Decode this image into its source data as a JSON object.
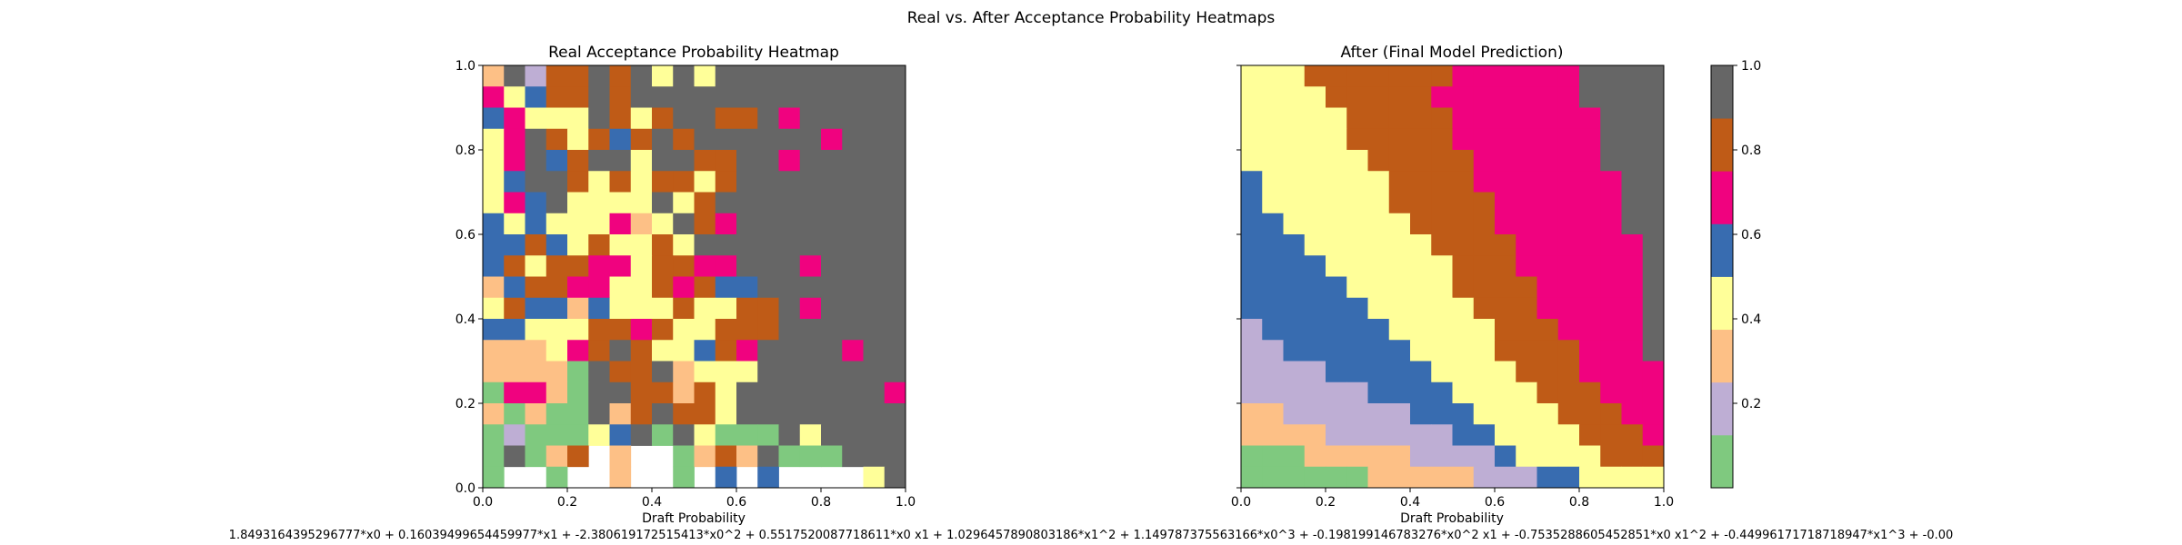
{
  "figure": {
    "suptitle": "Real vs. After Acceptance Probability Heatmaps",
    "formula": "1.8493164395296777*x0 + 0.16039499654459977*x1 + -2.380619172515413*x0^2 + 0.5517520087718611*x0 x1 + 1.0296457890803186*x1^2 + 1.149787375563166*x0^3 + -0.198199146783276*x0^2 x1 + -0.7535288605452851*x0 x1^2 + -0.44996171718718947*x1^3 + -0.00"
  },
  "chart_data": [
    {
      "type": "heatmap",
      "title": "Real Acceptance Probability Heatmap",
      "xlabel": "Draft Probability",
      "ylabel": "",
      "xlim": [
        0,
        1
      ],
      "ylim": [
        0,
        1
      ],
      "xticks": [
        "0.0",
        "0.2",
        "0.4",
        "0.6",
        "0.8",
        "1.0"
      ],
      "yticks": [
        "0.0",
        "0.2",
        "0.4",
        "0.6",
        "0.8",
        "1.0"
      ],
      "grid_size": 20,
      "value_scale": "0–7 bins, bin k covers [k/8, (k+1)/8); -1 = no data (white)",
      "rows_top_to_bottom": [
        [
          2,
          7,
          1,
          6,
          6,
          7,
          6,
          7,
          3,
          7,
          3,
          7,
          7,
          7,
          7,
          7,
          7,
          7,
          7,
          7
        ],
        [
          5,
          3,
          4,
          6,
          6,
          7,
          6,
          7,
          7,
          7,
          7,
          7,
          7,
          7,
          7,
          7,
          7,
          7,
          7,
          7
        ],
        [
          4,
          5,
          3,
          3,
          3,
          7,
          6,
          3,
          6,
          7,
          7,
          6,
          6,
          7,
          5,
          7,
          7,
          7,
          7,
          7
        ],
        [
          3,
          5,
          7,
          6,
          3,
          6,
          4,
          6,
          7,
          6,
          7,
          7,
          7,
          7,
          7,
          7,
          5,
          7,
          7,
          7
        ],
        [
          3,
          5,
          7,
          4,
          6,
          7,
          7,
          3,
          7,
          7,
          6,
          6,
          7,
          7,
          5,
          7,
          7,
          7,
          7,
          7
        ],
        [
          3,
          4,
          7,
          7,
          6,
          3,
          6,
          3,
          6,
          6,
          3,
          6,
          7,
          7,
          7,
          7,
          7,
          7,
          7,
          7
        ],
        [
          3,
          5,
          4,
          7,
          3,
          3,
          3,
          3,
          7,
          3,
          6,
          7,
          7,
          7,
          7,
          7,
          7,
          7,
          7,
          7
        ],
        [
          4,
          3,
          4,
          3,
          3,
          3,
          5,
          2,
          3,
          7,
          6,
          5,
          7,
          7,
          7,
          7,
          7,
          7,
          7,
          7
        ],
        [
          4,
          4,
          6,
          4,
          3,
          6,
          3,
          3,
          6,
          3,
          7,
          7,
          7,
          7,
          7,
          7,
          7,
          7,
          7,
          7
        ],
        [
          4,
          6,
          3,
          6,
          6,
          5,
          5,
          3,
          6,
          6,
          5,
          5,
          7,
          7,
          7,
          5,
          7,
          7,
          7,
          7
        ],
        [
          2,
          4,
          6,
          6,
          5,
          5,
          3,
          3,
          6,
          5,
          6,
          4,
          4,
          7,
          7,
          7,
          7,
          7,
          7,
          7
        ],
        [
          3,
          6,
          4,
          4,
          2,
          4,
          3,
          3,
          3,
          6,
          3,
          3,
          6,
          6,
          7,
          5,
          7,
          7,
          7,
          7
        ],
        [
          4,
          4,
          3,
          3,
          3,
          6,
          6,
          5,
          6,
          3,
          3,
          6,
          6,
          6,
          7,
          7,
          7,
          7,
          7,
          7
        ],
        [
          2,
          2,
          2,
          3,
          5,
          6,
          7,
          6,
          3,
          3,
          4,
          6,
          5,
          7,
          7,
          7,
          7,
          5,
          7,
          7
        ],
        [
          2,
          2,
          2,
          2,
          0,
          7,
          6,
          6,
          7,
          2,
          3,
          3,
          3,
          7,
          7,
          7,
          7,
          7,
          7,
          7
        ],
        [
          0,
          5,
          5,
          2,
          0,
          7,
          7,
          6,
          6,
          2,
          6,
          3,
          7,
          7,
          7,
          7,
          7,
          7,
          7,
          5
        ],
        [
          2,
          0,
          2,
          0,
          0,
          7,
          2,
          6,
          7,
          6,
          6,
          3,
          7,
          7,
          7,
          7,
          7,
          7,
          7,
          7
        ],
        [
          0,
          1,
          0,
          0,
          0,
          3,
          4,
          7,
          0,
          7,
          3,
          0,
          0,
          0,
          7,
          3,
          7,
          7,
          7,
          7
        ],
        [
          0,
          7,
          0,
          2,
          6,
          -1,
          2,
          -1,
          -1,
          0,
          2,
          6,
          2,
          7,
          0,
          0,
          0,
          7,
          7,
          7
        ],
        [
          0,
          -1,
          -1,
          0,
          -1,
          -1,
          2,
          -1,
          -1,
          0,
          -1,
          4,
          -1,
          4,
          -1,
          -1,
          -1,
          -1,
          3,
          7
        ]
      ]
    },
    {
      "type": "heatmap",
      "title": "After (Final Model Prediction)",
      "xlabel": "Draft Probability",
      "ylabel": "",
      "xlim": [
        0,
        1
      ],
      "ylim": [
        0,
        1
      ],
      "xticks": [
        "0.0",
        "0.2",
        "0.4",
        "0.6",
        "0.8",
        "1.0"
      ],
      "yticks": [
        "0.0",
        "0.2",
        "0.4",
        "0.6",
        "0.8",
        "1.0"
      ],
      "grid_size": 20,
      "value_scale": "0–7 bins, bin k covers [k/8, (k+1)/8)",
      "rows_top_to_bottom": [
        [
          3,
          3,
          3,
          6,
          6,
          6,
          6,
          6,
          6,
          6,
          5,
          5,
          5,
          5,
          5,
          5,
          7,
          7,
          7,
          7
        ],
        [
          3,
          3,
          3,
          3,
          6,
          6,
          6,
          6,
          6,
          5,
          5,
          5,
          5,
          5,
          5,
          5,
          7,
          7,
          7,
          7
        ],
        [
          3,
          3,
          3,
          3,
          3,
          6,
          6,
          6,
          6,
          6,
          5,
          5,
          5,
          5,
          5,
          5,
          5,
          7,
          7,
          7
        ],
        [
          3,
          3,
          3,
          3,
          3,
          6,
          6,
          6,
          6,
          6,
          5,
          5,
          5,
          5,
          5,
          5,
          5,
          7,
          7,
          7
        ],
        [
          3,
          3,
          3,
          3,
          3,
          3,
          6,
          6,
          6,
          6,
          6,
          5,
          5,
          5,
          5,
          5,
          5,
          7,
          7,
          7
        ],
        [
          4,
          3,
          3,
          3,
          3,
          3,
          3,
          6,
          6,
          6,
          6,
          5,
          5,
          5,
          5,
          5,
          5,
          5,
          7,
          7
        ],
        [
          4,
          3,
          3,
          3,
          3,
          3,
          3,
          6,
          6,
          6,
          6,
          6,
          5,
          5,
          5,
          5,
          5,
          5,
          7,
          7
        ],
        [
          4,
          4,
          3,
          3,
          3,
          3,
          3,
          3,
          6,
          6,
          6,
          6,
          5,
          5,
          5,
          5,
          5,
          5,
          7,
          7
        ],
        [
          4,
          4,
          4,
          3,
          3,
          3,
          3,
          3,
          3,
          6,
          6,
          6,
          6,
          5,
          5,
          5,
          5,
          5,
          5,
          7
        ],
        [
          4,
          4,
          4,
          4,
          3,
          3,
          3,
          3,
          3,
          3,
          6,
          6,
          6,
          5,
          5,
          5,
          5,
          5,
          5,
          7
        ],
        [
          4,
          4,
          4,
          4,
          4,
          3,
          3,
          3,
          3,
          3,
          6,
          6,
          6,
          6,
          5,
          5,
          5,
          5,
          5,
          7
        ],
        [
          4,
          4,
          4,
          4,
          4,
          4,
          3,
          3,
          3,
          3,
          3,
          6,
          6,
          6,
          5,
          5,
          5,
          5,
          5,
          7
        ],
        [
          1,
          4,
          4,
          4,
          4,
          4,
          4,
          3,
          3,
          3,
          3,
          3,
          6,
          6,
          6,
          5,
          5,
          5,
          5,
          7
        ],
        [
          1,
          1,
          4,
          4,
          4,
          4,
          4,
          4,
          3,
          3,
          3,
          3,
          6,
          6,
          6,
          6,
          5,
          5,
          5,
          7
        ],
        [
          1,
          1,
          1,
          1,
          4,
          4,
          4,
          4,
          4,
          3,
          3,
          3,
          3,
          6,
          6,
          6,
          5,
          5,
          5,
          5
        ],
        [
          1,
          1,
          1,
          1,
          1,
          1,
          4,
          4,
          4,
          4,
          3,
          3,
          3,
          3,
          6,
          6,
          6,
          5,
          5,
          5
        ],
        [
          2,
          2,
          1,
          1,
          1,
          1,
          1,
          1,
          4,
          4,
          4,
          3,
          3,
          3,
          3,
          6,
          6,
          6,
          5,
          5
        ],
        [
          2,
          2,
          2,
          2,
          1,
          1,
          1,
          1,
          1,
          1,
          4,
          4,
          3,
          3,
          3,
          3,
          6,
          6,
          6,
          5
        ],
        [
          0,
          0,
          0,
          2,
          2,
          2,
          2,
          2,
          1,
          1,
          1,
          1,
          4,
          3,
          3,
          3,
          3,
          6,
          6,
          6
        ],
        [
          0,
          0,
          0,
          0,
          0,
          0,
          2,
          2,
          2,
          2,
          2,
          1,
          1,
          1,
          4,
          4,
          3,
          3,
          3,
          3
        ]
      ]
    }
  ],
  "colorbar": {
    "colors": [
      "#7fc97f",
      "#beaed4",
      "#fdc086",
      "#ffff99",
      "#386cb0",
      "#f0027f",
      "#bf5b17",
      "#666666"
    ],
    "ticks": [
      "0.2",
      "0.4",
      "0.6",
      "0.8",
      "1.0"
    ],
    "range": [
      0,
      1
    ]
  }
}
